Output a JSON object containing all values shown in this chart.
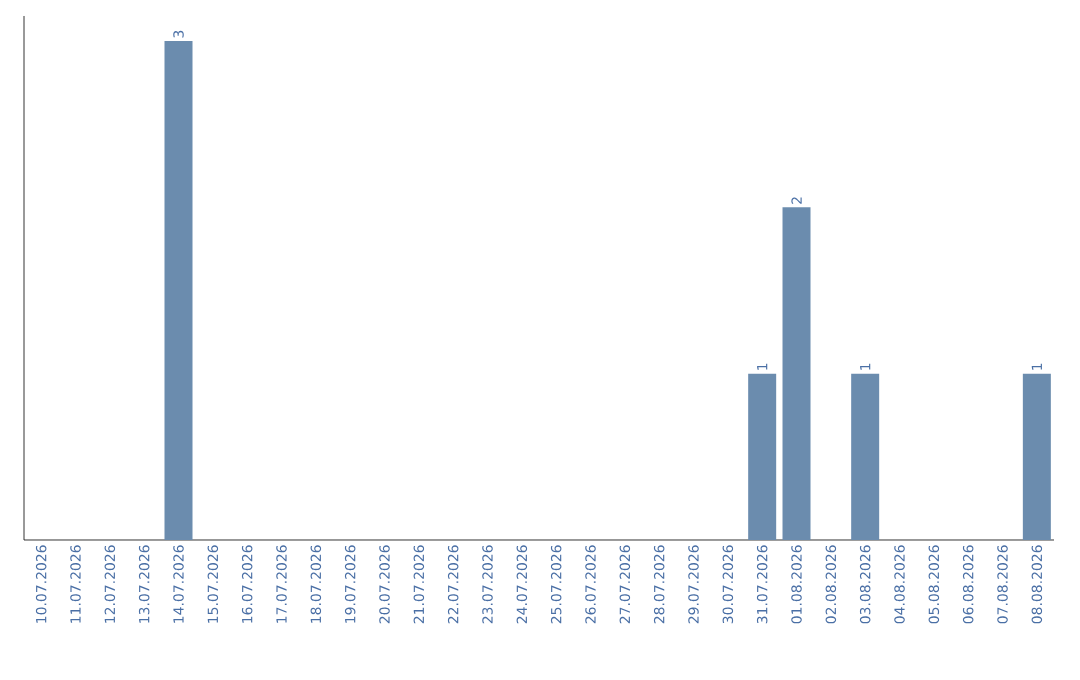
{
  "chart_data": {
    "type": "bar",
    "categories": [
      "10.07.2026",
      "11.07.2026",
      "12.07.2026",
      "13.07.2026",
      "14.07.2026",
      "15.07.2026",
      "16.07.2026",
      "17.07.2026",
      "18.07.2026",
      "19.07.2026",
      "20.07.2026",
      "21.07.2026",
      "22.07.2026",
      "23.07.2026",
      "24.07.2026",
      "25.07.2026",
      "26.07.2026",
      "27.07.2026",
      "28.07.2026",
      "29.07.2026",
      "30.07.2026",
      "31.07.2026",
      "01.08.2026",
      "02.08.2026",
      "03.08.2026",
      "04.08.2026",
      "05.08.2026",
      "06.08.2026",
      "07.08.2026",
      "08.08.2026"
    ],
    "values": [
      0,
      0,
      0,
      0,
      3,
      0,
      0,
      0,
      0,
      0,
      0,
      0,
      0,
      0,
      0,
      0,
      0,
      0,
      0,
      0,
      0,
      1,
      2,
      0,
      1,
      0,
      0,
      0,
      0,
      1
    ],
    "color": "#6b8cae",
    "value_labels": [
      null,
      null,
      null,
      null,
      "3",
      null,
      null,
      null,
      null,
      null,
      null,
      null,
      null,
      null,
      null,
      null,
      null,
      null,
      null,
      null,
      null,
      "1",
      "2",
      null,
      "1",
      null,
      null,
      null,
      null,
      "1"
    ]
  }
}
